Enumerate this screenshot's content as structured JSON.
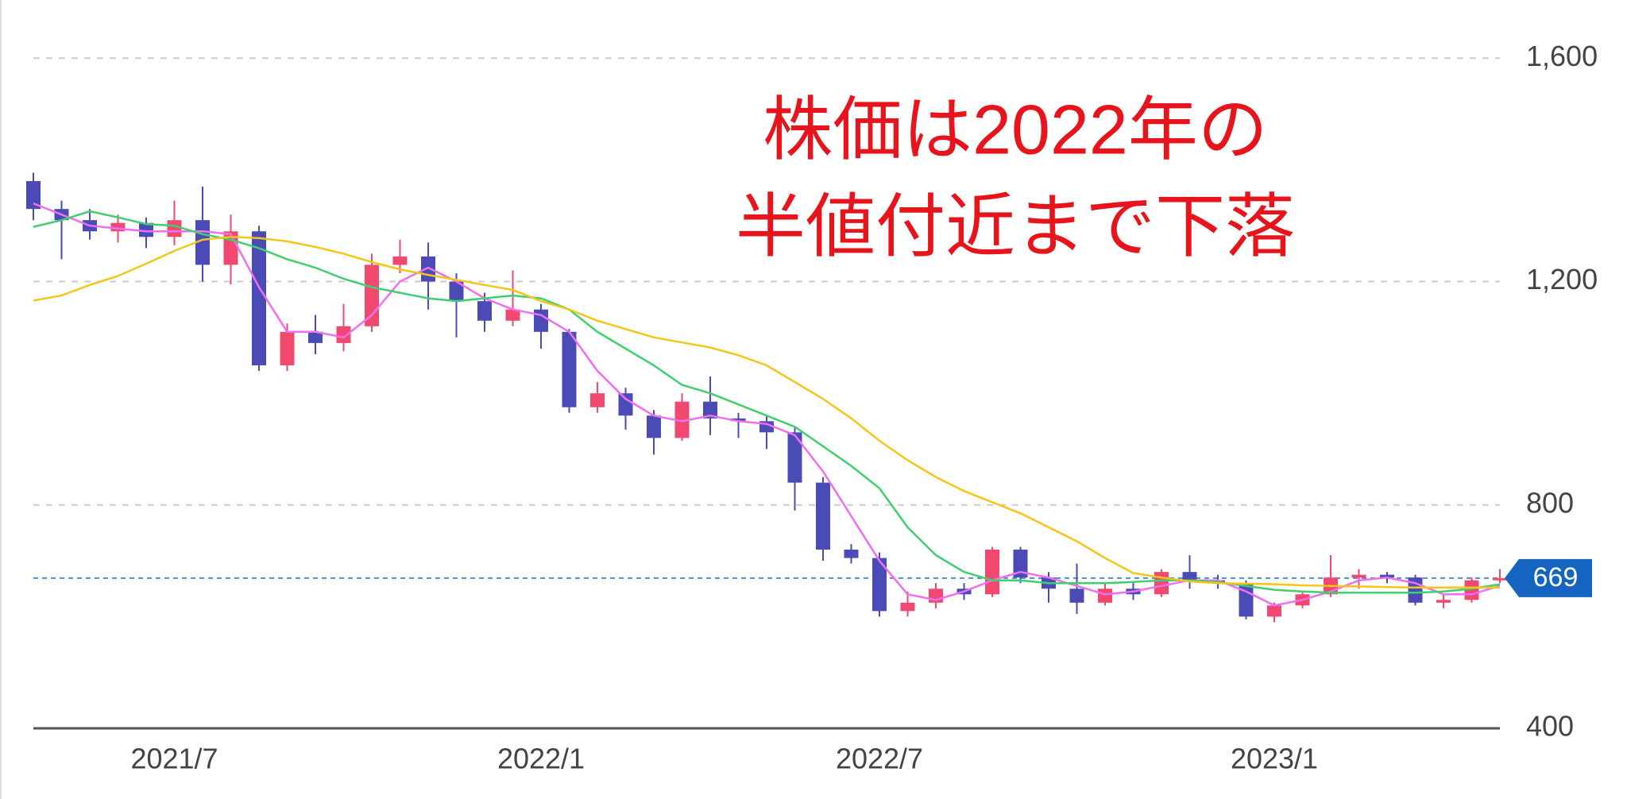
{
  "chart_data": {
    "type": "candlestick",
    "annotation": [
      "株価は2022年の",
      "半値付近まで下落"
    ],
    "categories": [
      null,
      null,
      null,
      null,
      null,
      "2021/7",
      null,
      null,
      null,
      null,
      null,
      null,
      null,
      null,
      null,
      null,
      null,
      null,
      "2022/1",
      null,
      null,
      null,
      null,
      null,
      null,
      null,
      null,
      null,
      null,
      null,
      "2022/7",
      null,
      null,
      null,
      null,
      null,
      null,
      null,
      null,
      null,
      null,
      null,
      null,
      null,
      "2023/1",
      null,
      null,
      null,
      null,
      null,
      null,
      null,
      null
    ],
    "open": [
      1380,
      1330,
      1310,
      1290,
      1305,
      1280,
      1310,
      1230,
      1290,
      1050,
      1110,
      1090,
      1120,
      1230,
      1245,
      1200,
      1165,
      1130,
      1150,
      1110,
      975,
      1000,
      960,
      920,
      985,
      955,
      950,
      930,
      840,
      720,
      705,
      610,
      625,
      650,
      640,
      720,
      670,
      650,
      625,
      650,
      640,
      680,
      665,
      660,
      600,
      620,
      640,
      670,
      675,
      670,
      625,
      630,
      665
    ],
    "high": [
      1395,
      1345,
      1330,
      1320,
      1315,
      1345,
      1370,
      1320,
      1300,
      1125,
      1140,
      1160,
      1250,
      1275,
      1270,
      1215,
      1180,
      1220,
      1160,
      1115,
      1020,
      1010,
      970,
      1000,
      1030,
      965,
      960,
      940,
      850,
      730,
      715,
      645,
      660,
      660,
      725,
      725,
      680,
      695,
      660,
      660,
      685,
      710,
      675,
      665,
      625,
      645,
      710,
      685,
      680,
      675,
      640,
      670,
      685
    ],
    "low": [
      1310,
      1240,
      1275,
      1270,
      1260,
      1265,
      1200,
      1195,
      1040,
      1040,
      1070,
      1075,
      1110,
      1215,
      1150,
      1100,
      1110,
      1120,
      1080,
      965,
      965,
      935,
      890,
      915,
      925,
      920,
      900,
      790,
      700,
      695,
      600,
      600,
      615,
      630,
      635,
      660,
      625,
      605,
      620,
      630,
      635,
      650,
      650,
      595,
      590,
      615,
      635,
      650,
      660,
      620,
      615,
      625,
      660
    ],
    "close": [
      1330,
      1310,
      1290,
      1305,
      1280,
      1310,
      1230,
      1290,
      1050,
      1110,
      1090,
      1120,
      1230,
      1245,
      1200,
      1165,
      1130,
      1150,
      1110,
      975,
      1000,
      960,
      920,
      985,
      955,
      950,
      930,
      840,
      720,
      705,
      610,
      625,
      650,
      640,
      720,
      670,
      650,
      625,
      650,
      640,
      680,
      665,
      660,
      600,
      620,
      640,
      670,
      675,
      670,
      625,
      630,
      665,
      669
    ],
    "up_color": "#f0486e",
    "down_color": "#4b4bb8",
    "moving_averages": [
      {
        "color": "#f06ef0",
        "values": [
          1340,
          1320,
          1300,
          1295,
          1290,
          1290,
          1290,
          1285,
          1190,
          1110,
          1110,
          1100,
          1140,
          1200,
          1225,
          1200,
          1170,
          1150,
          1140,
          1110,
          1040,
          990,
          960,
          950,
          960,
          950,
          945,
          925,
          860,
          780,
          700,
          640,
          630,
          645,
          665,
          680,
          670,
          655,
          640,
          645,
          655,
          665,
          665,
          645,
          620,
          630,
          645,
          665,
          670,
          660,
          640,
          640,
          655
        ]
      },
      {
        "color": "#3ecf6e",
        "values": [
          1298,
          1310,
          1326,
          1315,
          1303,
          1300,
          1285,
          1275,
          1260,
          1240,
          1225,
          1205,
          1190,
          1180,
          1170,
          1165,
          1170,
          1175,
          1170,
          1150,
          1110,
          1080,
          1050,
          1015,
          1000,
          980,
          960,
          940,
          905,
          870,
          830,
          760,
          710,
          680,
          665,
          665,
          660,
          660,
          660,
          662,
          665,
          665,
          662,
          655,
          648,
          645,
          643,
          643,
          643,
          643,
          645,
          650,
          658
        ]
      },
      {
        "color": "#f5c518",
        "values": [
          1166,
          1175,
          1194,
          1210,
          1232,
          1255,
          1275,
          1280,
          1278,
          1272,
          1262,
          1250,
          1235,
          1222,
          1212,
          1203,
          1194,
          1185,
          1165,
          1150,
          1130,
          1115,
          1100,
          1091,
          1082,
          1068,
          1050,
          1020,
          990,
          955,
          915,
          880,
          850,
          825,
          805,
          785,
          760,
          735,
          705,
          678,
          670,
          663,
          660,
          659,
          658,
          656,
          655,
          654,
          653,
          652,
          652,
          652,
          652
        ]
      }
    ],
    "last_price": 669,
    "last_price_color": "#1565c0",
    "ylim": [
      400,
      1700
    ],
    "yticks": [
      {
        "value": 400,
        "label": "400"
      },
      {
        "value": 800,
        "label": "800"
      },
      {
        "value": 1200,
        "label": "1,200"
      },
      {
        "value": 1600,
        "label": "1,600"
      }
    ],
    "grid": true
  }
}
